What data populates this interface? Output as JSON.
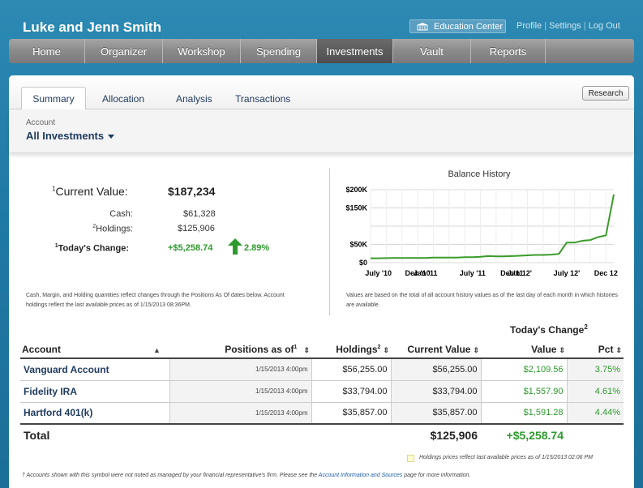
{
  "header": {
    "user_name": "Luke and Jenn Smith",
    "education_center": "Education Center",
    "links": [
      "Profile",
      "Settings",
      "Log Out"
    ]
  },
  "nav": [
    {
      "label": "Home",
      "active": false
    },
    {
      "label": "Organizer",
      "active": false
    },
    {
      "label": "Workshop",
      "active": false
    },
    {
      "label": "Spending",
      "active": false
    },
    {
      "label": "Investments",
      "active": true
    },
    {
      "label": "Vault",
      "active": false
    },
    {
      "label": "Reports",
      "active": false
    }
  ],
  "subtabs": {
    "summary": "Summary",
    "allocation": "Allocation",
    "analysis": "Analysis",
    "transactions": "Transactions",
    "research": "Research"
  },
  "account": {
    "label": "Account",
    "value": "All Investments"
  },
  "summary": {
    "current_value_label": "Current Value:",
    "current_value_sup": "1",
    "current_value": "$187,234",
    "cash_label": "Cash:",
    "cash_value": "$61,328",
    "holdings_label": "Holdings:",
    "holdings_sup": "2",
    "holdings_value": "$125,906",
    "todays_change_label": "Today's Change:",
    "todays_change_sup": "1",
    "todays_change_value": "+$5,258.74",
    "todays_change_pct": "2.89%",
    "note": "Cash, Margin, and Holding quantities reflect changes through the Positions As Of dates below. Account holdings reflect the last available prices as of 1/15/2013 08:36PM."
  },
  "chart_data": {
    "type": "line",
    "title": "Balance History",
    "x": [
      "Jun '10",
      "Jul '10",
      "Aug '10",
      "Sep '10",
      "Oct '10",
      "Nov '10",
      "Dec '10",
      "Jan '11",
      "Feb '11",
      "Mar '11",
      "Apr '11",
      "May '11",
      "Jun '11",
      "Jul '11",
      "Aug '11",
      "Sep '11",
      "Oct '11",
      "Nov '11",
      "Dec '11",
      "Jan '12",
      "Feb '12",
      "Mar '12",
      "Apr '12",
      "May '12",
      "Jun '12",
      "Jul '12",
      "Aug '12",
      "Sep '12",
      "Oct '12",
      "Nov '12",
      "Dec '12",
      "Jan '13"
    ],
    "series": [
      {
        "values": [
          12,
          12,
          12.5,
          13,
          13,
          13,
          13,
          13,
          14,
          14,
          14,
          14,
          15,
          15,
          16,
          18,
          17,
          17,
          18,
          19,
          20,
          21,
          21,
          22,
          24,
          55,
          55,
          60,
          62,
          70,
          75,
          187
        ]
      }
    ],
    "xticks": [
      "July '10",
      "Dec '10",
      "Jan '11",
      "July '11",
      "Dec'11",
      "Jan 12'",
      "July 12'",
      "Dec 12"
    ],
    "yticks": [
      "$0",
      "$50K",
      "$150K",
      "$200K"
    ],
    "ylim": [
      0,
      200
    ],
    "note": "Values are based on the total of all account history values as of the last day of each month in which histories are available.",
    "color": "#3a9b2a"
  },
  "table": {
    "todays_change_header": "Today's Change",
    "todays_change_sup": "2",
    "columns": {
      "account": "Account",
      "positions": "Positions as of",
      "positions_sup": "1",
      "holdings": "Holdings",
      "holdings_sup": "2",
      "current_value": "Current Value",
      "value": "Value",
      "pct": "Pct"
    },
    "rows": [
      {
        "account": "Vanguard Account",
        "positions": "1/15/2013 4:00pm",
        "holdings": "$56,255.00",
        "current_value": "$56,255.00",
        "value": "$2,109.56",
        "pct": "3.75%"
      },
      {
        "account": "Fidelity IRA",
        "positions": "1/15/2013 4:00pm",
        "holdings": "$33,794.00",
        "current_value": "$33,794.00",
        "value": "$1,557.90",
        "pct": "4.61%"
      },
      {
        "account": "Hartford 401(k)",
        "positions": "1/15/2013 4:00pm",
        "holdings": "$35,857.00",
        "current_value": "$35,857.00",
        "value": "$1,591.28",
        "pct": "4.44%"
      }
    ],
    "total_label": "Total",
    "total_value": "$125,906",
    "total_change": "+$5,258.74"
  },
  "footer": {
    "legend": "Holdings prices reflect last available prices as of 1/15/2013 02:06 PM",
    "footnote_pre": "† Accounts shown with this symbol were not noted as managed by your financial representative's firm. Please see the",
    "footnote_link": "Account Information and Sources",
    "footnote_post": "page for more information."
  }
}
